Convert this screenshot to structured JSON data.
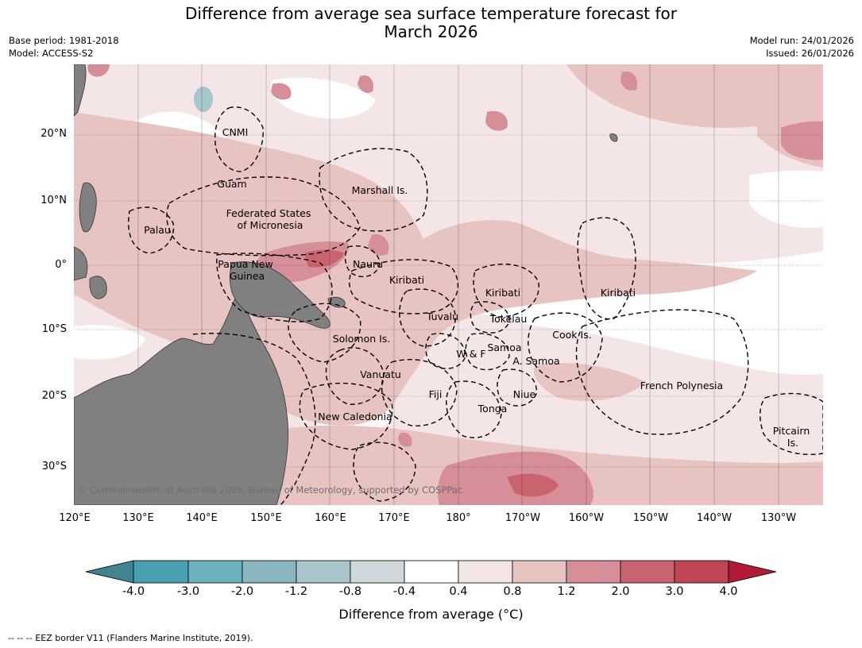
{
  "title": "Difference from average sea surface temperature forecast for\nMarch 2026",
  "meta": {
    "base_period": "Base period: 1981-2018",
    "model": "Model: ACCESS-S2",
    "model_run": "Model run: 24/01/2026",
    "issued": "Issued: 26/01/2026"
  },
  "axes": {
    "lat_labels": [
      "20°N",
      "10°N",
      "0°",
      "10°S",
      "20°S",
      "30°S"
    ],
    "lon_labels": [
      "120°E",
      "130°E",
      "140°E",
      "150°E",
      "160°E",
      "170°E",
      "180°",
      "170°W",
      "160°W",
      "150°W",
      "140°W",
      "130°W"
    ]
  },
  "regions": [
    {
      "name": "CNMI"
    },
    {
      "name": "Guam"
    },
    {
      "name": "Marshall Is."
    },
    {
      "name": "Federated States\nof Micronesia"
    },
    {
      "name": "Palau"
    },
    {
      "name": "Papua New\nGuinea"
    },
    {
      "name": "Nauru"
    },
    {
      "name": "Kiribati"
    },
    {
      "name": "Kiribati"
    },
    {
      "name": "Kiribati"
    },
    {
      "name": "Tuvalu"
    },
    {
      "name": "Tokelau"
    },
    {
      "name": "Cook Is."
    },
    {
      "name": "Solomon Is."
    },
    {
      "name": "W & F"
    },
    {
      "name": "Samoa"
    },
    {
      "name": "A. Samoa"
    },
    {
      "name": "Vanuatu"
    },
    {
      "name": "Fiji"
    },
    {
      "name": "Niue"
    },
    {
      "name": "French Polynesia"
    },
    {
      "name": "Tonga"
    },
    {
      "name": "New Caledonia"
    },
    {
      "name": "Pitcairn\nIs."
    }
  ],
  "copyright": "© Commonwealth of Australia 2026, Bureau of Meteorology, supported by COSPPac",
  "colorbar": {
    "label": "Difference from average (°C)",
    "ticks": [
      "-4.0",
      "-3.0",
      "-2.0",
      "-1.2",
      "-0.8",
      "-0.4",
      "0.4",
      "0.8",
      "1.2",
      "2.0",
      "3.0",
      "4.0"
    ],
    "colors": [
      "#3f8690",
      "#48a0b2",
      "#6cafbd",
      "#8ab6c1",
      "#a8c6cb",
      "#cfd9db",
      "#ffffff",
      "#f4e6e6",
      "#e7c3c1",
      "#d68f98",
      "#c9646f",
      "#c04653",
      "#b31a34"
    ]
  },
  "colors": {
    "land": "#808080",
    "anom_low": "#f4e6e6",
    "anom_mid": "#e7c3c1",
    "anom_high": "#d68f98",
    "anom_top": "#c9646f",
    "cool": "#a8c6cb"
  },
  "footnote": "--  --  -- EEZ border V11 (Flanders Marine Institute, 2019)."
}
